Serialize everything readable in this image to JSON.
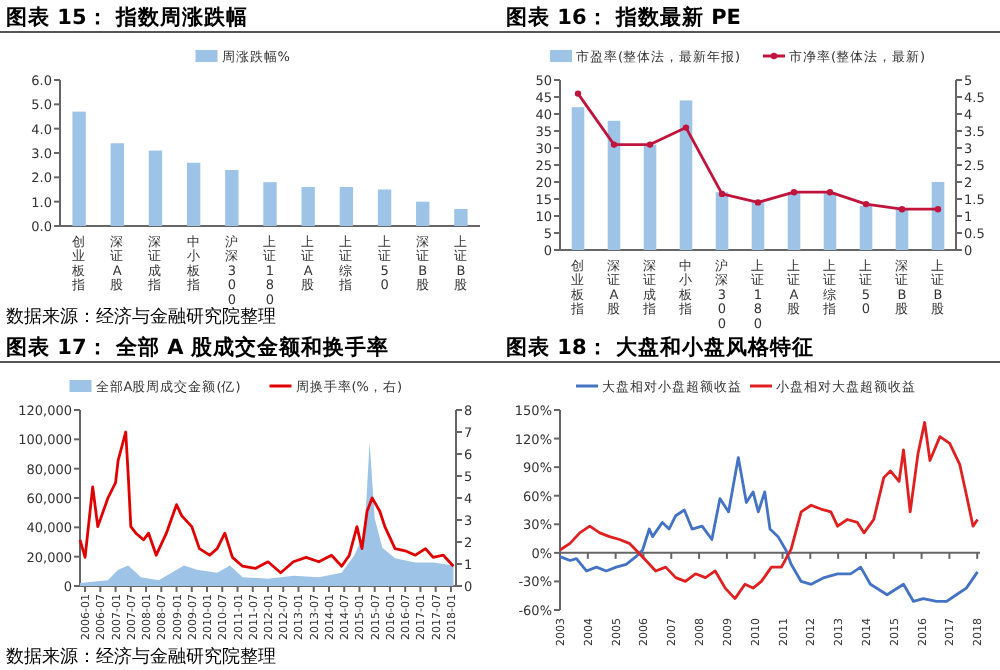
{
  "chart_data": [
    {
      "type": "bar",
      "title": "图表 15： 指数周涨跌幅",
      "categories": [
        "创业板指",
        "深证A股",
        "深证成指",
        "中小板指",
        "沪深300",
        "上证180",
        "上证A股",
        "上证综指",
        "上证50",
        "深证B股",
        "上证B股"
      ],
      "series": [
        {
          "name": "周涨跌幅%",
          "color": "#9dc3e6",
          "values": [
            4.7,
            3.4,
            3.1,
            2.6,
            2.3,
            1.8,
            1.6,
            1.6,
            1.5,
            1.0,
            0.7
          ]
        }
      ],
      "ylim": [
        0,
        6
      ],
      "yticks": [
        {
          "value": 0,
          "label": "0.0"
        },
        {
          "value": 1,
          "label": "1.0"
        },
        {
          "value": 2,
          "label": "2.0"
        },
        {
          "value": 3,
          "label": "3.0"
        },
        {
          "value": 4,
          "label": "4.0"
        },
        {
          "value": 5,
          "label": "5.0"
        },
        {
          "value": 6,
          "label": "6.0"
        }
      ],
      "legend": "top",
      "annotations": [
        "数据来源：经济与金融研究院整理"
      ]
    },
    {
      "type": "bar",
      "title": "图表 16： 指数最新 PE",
      "categories": [
        "创业板指",
        "深证A股",
        "深证成指",
        "中小板指",
        "沪深300",
        "上证180",
        "上证A股",
        "上证综指",
        "上证50",
        "深证B股",
        "上证B股"
      ],
      "series": [
        {
          "name": "市盈率(整体法，最新年报)",
          "color": "#9dc3e6",
          "values": [
            42,
            38,
            31,
            44,
            17,
            14,
            17,
            17,
            13,
            12,
            20
          ]
        },
        {
          "name": "市净率(整体法，最新)",
          "type": "line",
          "axis": "y2",
          "color": "#c0143c",
          "values": [
            4.6,
            3.1,
            3.1,
            3.6,
            1.65,
            1.4,
            1.7,
            1.7,
            1.35,
            1.2,
            1.2
          ]
        }
      ],
      "marker": "circle",
      "ylim": [
        0,
        50
      ],
      "yticks": [
        0,
        5,
        10,
        15,
        20,
        25,
        30,
        35,
        40,
        45,
        50
      ],
      "y2lim": [
        0,
        5
      ],
      "y2ticks": [
        0,
        0.5,
        1,
        1.5,
        2,
        2.5,
        3,
        3.5,
        4,
        4.5,
        5
      ],
      "legend": "top"
    },
    {
      "type": "area",
      "title": "图表 17： 全部 A 股成交金额和换手率",
      "series": [
        {
          "name": "全部A股周成交金额(亿)",
          "color": "#9dc3e6",
          "x": [
            "2005-11",
            "2006-10",
            "2007-02",
            "2007-06",
            "2007-11",
            "2008-06",
            "2008-11",
            "2009-04",
            "2009-09",
            "2010-05",
            "2010-10",
            "2011-03",
            "2012-01",
            "2012-11",
            "2013-09",
            "2014-06",
            "2014-11",
            "2015-03",
            "2015-05",
            "2015-07",
            "2015-10",
            "2016-03",
            "2016-11",
            "2017-06",
            "2018-02"
          ],
          "values": [
            2000,
            4000,
            11000,
            14000,
            6000,
            4000,
            9000,
            14000,
            11000,
            9000,
            14000,
            6000,
            5000,
            7000,
            6000,
            9000,
            21000,
            36000,
            98000,
            46000,
            26000,
            19000,
            16000,
            16000,
            14000
          ]
        },
        {
          "name": "周换手率(%，右)",
          "type": "line",
          "axis": "y2",
          "color": "#e00000",
          "x": [
            "2005-11",
            "2006-01",
            "2006-04",
            "2006-06",
            "2006-10",
            "2007-01",
            "2007-02",
            "2007-05",
            "2007-06",
            "2007-07",
            "2007-09",
            "2007-12",
            "2008-02",
            "2008-05",
            "2008-09",
            "2009-01",
            "2009-03",
            "2009-07",
            "2009-10",
            "2010-02",
            "2010-05",
            "2010-08",
            "2010-11",
            "2011-03",
            "2011-08",
            "2012-01",
            "2012-06",
            "2012-11",
            "2013-04",
            "2013-09",
            "2014-02",
            "2014-06",
            "2014-09",
            "2014-12",
            "2015-02",
            "2015-04",
            "2015-06",
            "2015-09",
            "2015-11",
            "2016-03",
            "2016-07",
            "2016-11",
            "2017-03",
            "2017-06",
            "2017-10",
            "2018-02"
          ],
          "values": [
            2.1,
            1.3,
            4.5,
            2.7,
            4.0,
            4.7,
            5.7,
            7.0,
            5.0,
            2.7,
            2.4,
            2.1,
            2.4,
            1.4,
            2.4,
            3.7,
            3.2,
            2.7,
            1.7,
            1.4,
            1.7,
            2.4,
            1.3,
            0.9,
            0.8,
            1.1,
            0.6,
            1.1,
            1.3,
            1.1,
            1.4,
            0.9,
            1.4,
            2.7,
            1.7,
            3.4,
            4.0,
            3.4,
            2.7,
            1.7,
            1.6,
            1.4,
            1.7,
            1.3,
            1.4,
            0.9
          ]
        }
      ],
      "xlim": [
        "2005-11",
        "2018-03"
      ],
      "xticks": [
        {
          "value": "2006-01",
          "label": "2006-01"
        },
        {
          "value": "2006-07",
          "label": "2006-07"
        },
        {
          "value": "2007-01",
          "label": "2007-01"
        },
        {
          "value": "2007-07",
          "label": "2007-07"
        },
        {
          "value": "2008-01",
          "label": "2008-01"
        },
        {
          "value": "2008-07",
          "label": "2008-07"
        },
        {
          "value": "2009-01",
          "label": "2009-01"
        },
        {
          "value": "2009-07",
          "label": "2009-07"
        },
        {
          "value": "2010-01",
          "label": "2010-01"
        },
        {
          "value": "2010-07",
          "label": "2010-07"
        },
        {
          "value": "2011-01",
          "label": "2011-01"
        },
        {
          "value": "2011-07",
          "label": "2011-07"
        },
        {
          "value": "2012-01",
          "label": "2012-01"
        },
        {
          "value": "2012-07",
          "label": "2012-07"
        },
        {
          "value": "2013-01",
          "label": "2013-01"
        },
        {
          "value": "2013-07",
          "label": "2013-07"
        },
        {
          "value": "2014-01",
          "label": "2014-01"
        },
        {
          "value": "2014-07",
          "label": "2014-07"
        },
        {
          "value": "2015-01",
          "label": "2015-01"
        },
        {
          "value": "2015-07",
          "label": "2015-07"
        },
        {
          "value": "2016-01",
          "label": "2016-01"
        },
        {
          "value": "2016-07",
          "label": "2016-07"
        },
        {
          "value": "2017-01",
          "label": "2017-01"
        },
        {
          "value": "2017-07",
          "label": "2017-07"
        },
        {
          "value": "2018-01",
          "label": "2018-01"
        }
      ],
      "ylim": [
        0,
        120000
      ],
      "yticks": [
        {
          "value": 0,
          "label": "0"
        },
        {
          "value": 20000,
          "label": "20,000"
        },
        {
          "value": 40000,
          "label": "40,000"
        },
        {
          "value": 60000,
          "label": "60,000"
        },
        {
          "value": 80000,
          "label": "80,000"
        },
        {
          "value": 100000,
          "label": "100,000"
        },
        {
          "value": 120000,
          "label": "120,000"
        }
      ],
      "y2lim": [
        0,
        8
      ],
      "y2ticks": [
        0,
        1,
        2,
        3,
        4,
        5,
        6,
        7,
        8
      ],
      "legend": "top",
      "annotations": [
        "数据来源：经济与金融研究院整理"
      ]
    },
    {
      "type": "line",
      "title": "图表 18： 大盘和小盘风格特征",
      "series": [
        {
          "name": "大盘相对小盘超额收益",
          "color": "#4472c4",
          "x": [
            2003,
            2003.36,
            2003.59,
            2003.95,
            2004.31,
            2004.66,
            2005.02,
            2005.38,
            2005.73,
            2005.97,
            2006.21,
            2006.33,
            2006.68,
            2006.92,
            2007.16,
            2007.47,
            2007.75,
            2008.11,
            2008.46,
            2008.75,
            2009.06,
            2009.41,
            2009.7,
            2009.94,
            2010.13,
            2010.36,
            2010.55,
            2010.84,
            2011.12,
            2011.31,
            2011.67,
            2012.03,
            2012.5,
            2012.98,
            2013.45,
            2013.81,
            2014.16,
            2014.76,
            2015.35,
            2015.71,
            2016.06,
            2016.54,
            2016.9,
            2017.25,
            2017.61,
            2018.01
          ],
          "values": [
            -4,
            -8,
            -6,
            -19,
            -15,
            -19,
            -15,
            -12,
            -4,
            3,
            25,
            17,
            32,
            25,
            39,
            45,
            25,
            28,
            14,
            57,
            43,
            100,
            53,
            64,
            43,
            64,
            25,
            17,
            3,
            -12,
            -30,
            -33,
            -26,
            -22,
            -22,
            -15,
            -33,
            -44,
            -33,
            -51,
            -48,
            -51,
            -51,
            -44,
            -37,
            -20
          ]
        },
        {
          "name": "小盘相对大盘超额收益",
          "color": "#e02020",
          "x": [
            2003,
            2003.36,
            2003.71,
            2004.07,
            2004.43,
            2004.78,
            2005.14,
            2005.49,
            2005.73,
            2006.09,
            2006.44,
            2006.8,
            2007.16,
            2007.51,
            2007.87,
            2008.23,
            2008.58,
            2008.94,
            2009.29,
            2009.65,
            2009.94,
            2010.24,
            2010.6,
            2010.96,
            2011.31,
            2011.67,
            2012.03,
            2012.38,
            2012.74,
            2012.98,
            2013.33,
            2013.69,
            2013.93,
            2014.28,
            2014.64,
            2014.88,
            2015.19,
            2015.35,
            2015.59,
            2015.87,
            2016.11,
            2016.3,
            2016.66,
            2017.01,
            2017.37,
            2017.61,
            2017.85,
            2018.01
          ],
          "values": [
            3,
            10,
            21,
            28,
            21,
            17,
            14,
            10,
            3,
            -8,
            -19,
            -15,
            -26,
            -30,
            -22,
            -26,
            -19,
            -37,
            -48,
            -33,
            -37,
            -30,
            -15,
            -15,
            4,
            43,
            50,
            46,
            43,
            28,
            35,
            32,
            21,
            35,
            79,
            86,
            75,
            108,
            43,
            104,
            137,
            97,
            122,
            115,
            93,
            61,
            28,
            35
          ]
        }
      ],
      "xlim": [
        2003,
        2018.1
      ],
      "xticks": [
        2003,
        2004,
        2005,
        2006,
        2007,
        2008,
        2009,
        2010,
        2011,
        2012,
        2013,
        2014,
        2015,
        2016,
        2017,
        2018
      ],
      "ylim": [
        -60,
        150
      ],
      "yticks": [
        {
          "value": -60,
          "label": "-60%"
        },
        {
          "value": -30,
          "label": "-30%"
        },
        {
          "value": 0,
          "label": "0%"
        },
        {
          "value": 30,
          "label": "30%"
        },
        {
          "value": 60,
          "label": "60%"
        },
        {
          "value": 90,
          "label": "90%"
        },
        {
          "value": 120,
          "label": "120%"
        },
        {
          "value": 150,
          "label": "150%"
        }
      ],
      "legend": "top"
    }
  ]
}
